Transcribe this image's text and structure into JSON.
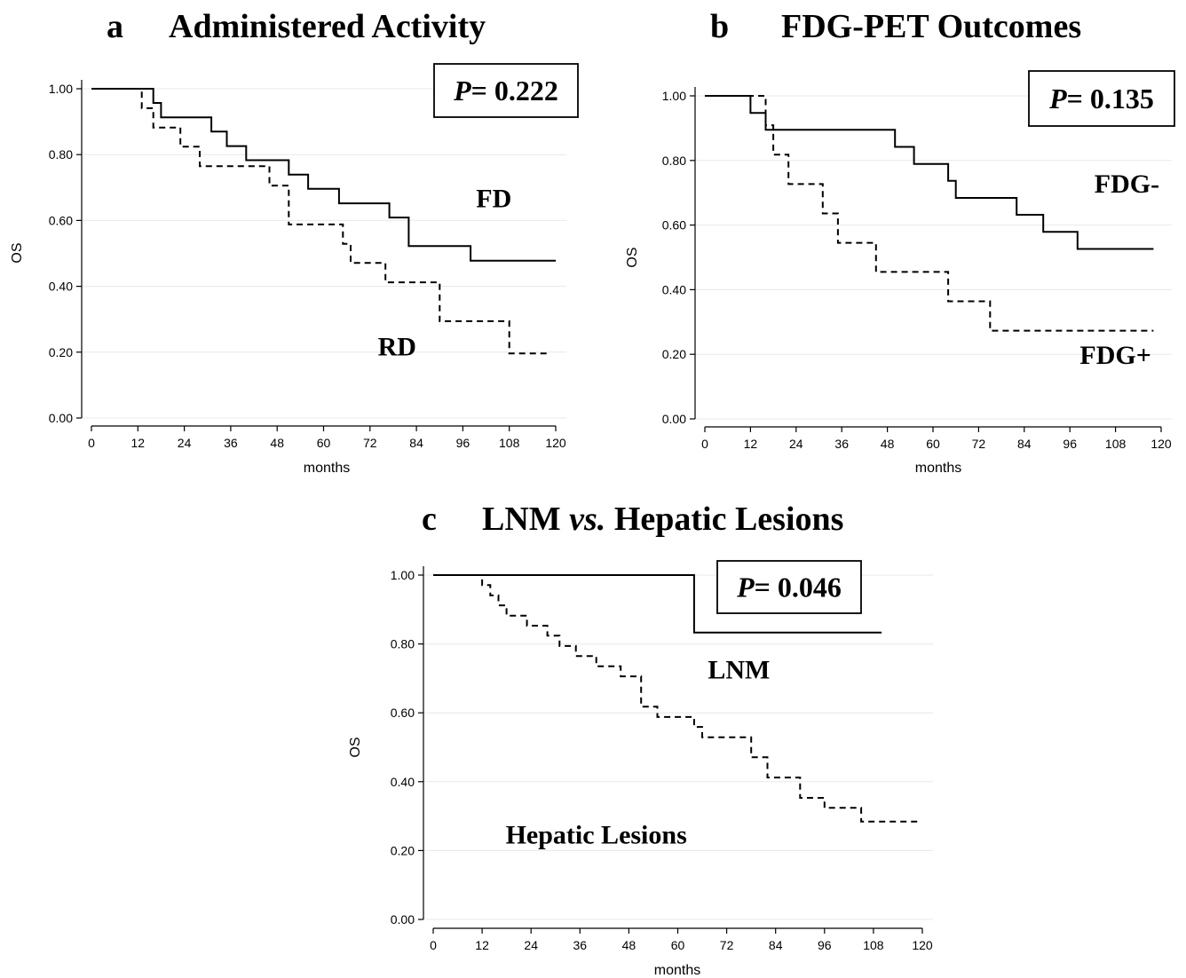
{
  "chart_data": [
    {
      "type": "line",
      "panel": "a",
      "title": "Administered Activity",
      "xlabel": "months",
      "ylabel": "OS",
      "xlim": [
        0,
        120
      ],
      "ylim": [
        0,
        1
      ],
      "xticks": [
        "0",
        "12",
        "24",
        "36",
        "48",
        "60",
        "72",
        "84",
        "96",
        "108",
        "120"
      ],
      "yticks": [
        "0.00",
        "0.20",
        "0.40",
        "0.60",
        "0.80",
        "1.00"
      ],
      "pvalue_prefix": "P",
      "pvalue_text": "= 0.222",
      "series": [
        {
          "name": "FD",
          "style": "solid",
          "x": [
            0,
            16,
            18,
            31,
            35,
            40,
            51,
            56,
            64,
            77,
            82,
            98,
            120
          ],
          "y": [
            1.0,
            0.957,
            0.913,
            0.87,
            0.826,
            0.783,
            0.739,
            0.696,
            0.652,
            0.609,
            0.522,
            0.478,
            0.478
          ]
        },
        {
          "name": "RD",
          "style": "dashed",
          "x": [
            0,
            13,
            16,
            23,
            28,
            46,
            51,
            65,
            67,
            76,
            90,
            108,
            118
          ],
          "y": [
            1.0,
            0.941,
            0.882,
            0.824,
            0.765,
            0.706,
            0.588,
            0.529,
            0.471,
            0.412,
            0.294,
            0.196,
            0.196
          ]
        }
      ],
      "labels": [
        {
          "text": "FD",
          "x": 104,
          "y": 0.64
        },
        {
          "text": "RD",
          "x": 79,
          "y": 0.19
        }
      ]
    },
    {
      "type": "line",
      "panel": "b",
      "title": "FDG-PET Outcomes",
      "xlabel": "months",
      "ylabel": "OS",
      "xlim": [
        0,
        120
      ],
      "ylim": [
        0,
        1
      ],
      "xticks": [
        "0",
        "12",
        "24",
        "36",
        "48",
        "60",
        "72",
        "84",
        "96",
        "108",
        "120"
      ],
      "yticks": [
        "0.00",
        "0.20",
        "0.40",
        "0.60",
        "0.80",
        "1.00"
      ],
      "pvalue_prefix": "P",
      "pvalue_text": "= 0.135",
      "series": [
        {
          "name": "FDG-",
          "style": "solid",
          "x": [
            0,
            12,
            16,
            50,
            55,
            64,
            66,
            82,
            89,
            98,
            118
          ],
          "y": [
            1.0,
            0.947,
            0.895,
            0.842,
            0.789,
            0.737,
            0.684,
            0.632,
            0.579,
            0.526,
            0.526
          ]
        },
        {
          "name": "FDG+",
          "style": "dashed",
          "x": [
            0,
            16,
            18,
            22,
            31,
            35,
            45,
            64,
            75,
            118
          ],
          "y": [
            1.0,
            0.909,
            0.818,
            0.727,
            0.636,
            0.545,
            0.455,
            0.364,
            0.273,
            0.273
          ]
        }
      ],
      "labels": [
        {
          "text": "FDG-",
          "x": 111,
          "y": 0.7
        },
        {
          "text": "FDG+",
          "x": 108,
          "y": 0.17
        }
      ]
    },
    {
      "type": "line",
      "panel": "c",
      "title": "LNM vs. Hepatic Lesions",
      "title_parts": [
        "LNM ",
        "vs.",
        " Hepatic Lesions"
      ],
      "xlabel": "months",
      "ylabel": "OS",
      "xlim": [
        0,
        120
      ],
      "ylim": [
        0,
        1
      ],
      "xticks": [
        "0",
        "12",
        "24",
        "36",
        "48",
        "60",
        "72",
        "84",
        "96",
        "108",
        "120"
      ],
      "yticks": [
        "0.00",
        "0.20",
        "0.40",
        "0.60",
        "0.80",
        "1.00"
      ],
      "pvalue_prefix": "P",
      "pvalue_text": "= 0.046",
      "series": [
        {
          "name": "LNM",
          "style": "solid",
          "x": [
            0,
            64,
            110
          ],
          "y": [
            1.0,
            0.833,
            0.833
          ]
        },
        {
          "name": "Hepatic Lesions",
          "style": "dashed",
          "x": [
            0,
            12,
            14,
            16,
            18,
            23,
            28,
            31,
            35,
            40,
            46,
            51,
            55,
            64,
            66,
            70,
            78,
            82,
            90,
            96,
            105,
            119
          ],
          "y": [
            1.0,
            0.971,
            0.941,
            0.912,
            0.882,
            0.853,
            0.824,
            0.794,
            0.765,
            0.735,
            0.706,
            0.618,
            0.588,
            0.559,
            0.529,
            0.529,
            0.471,
            0.412,
            0.353,
            0.324,
            0.284,
            0.284
          ]
        }
      ],
      "labels": [
        {
          "text": "LNM",
          "x": 75,
          "y": 0.7
        },
        {
          "text": "Hepatic Lesions",
          "x": 40,
          "y": 0.22
        }
      ]
    }
  ]
}
